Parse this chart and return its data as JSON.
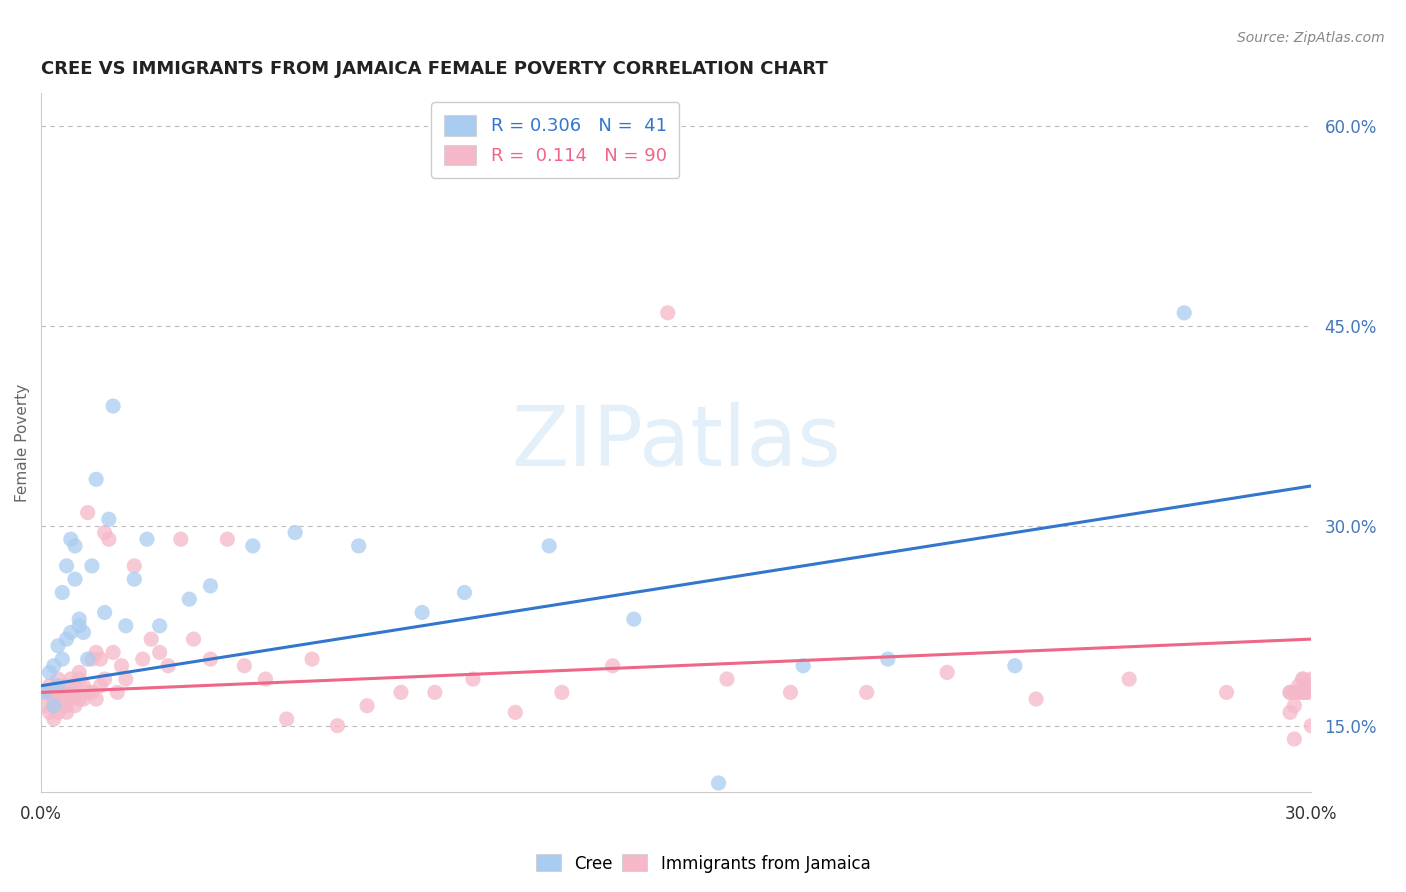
{
  "title": "CREE VS IMMIGRANTS FROM JAMAICA FEMALE POVERTY CORRELATION CHART",
  "source_text": "Source: ZipAtlas.com",
  "ylabel": "Female Poverty",
  "xlim": [
    0.0,
    0.3
  ],
  "ylim": [
    0.1,
    0.625
  ],
  "yticks": [
    0.15,
    0.3,
    0.45,
    0.6
  ],
  "ytick_labels": [
    "15.0%",
    "30.0%",
    "45.0%",
    "60.0%"
  ],
  "legend_R1": "0.306",
  "legend_N1": "41",
  "legend_R2": "0.114",
  "legend_N2": "90",
  "cree_color": "#aaccf0",
  "jamaica_color": "#f5b8c8",
  "line_cree_color": "#3377cc",
  "line_jamaica_color": "#ee6688",
  "background_color": "#ffffff",
  "grid_color": "#bbbbbb",
  "title_color": "#222222",
  "label_color": "#4477bb",
  "cree_x": [
    0.001,
    0.002,
    0.003,
    0.003,
    0.004,
    0.004,
    0.005,
    0.005,
    0.006,
    0.006,
    0.007,
    0.007,
    0.008,
    0.008,
    0.009,
    0.009,
    0.01,
    0.011,
    0.012,
    0.013,
    0.015,
    0.016,
    0.017,
    0.02,
    0.022,
    0.025,
    0.028,
    0.035,
    0.04,
    0.05,
    0.06,
    0.075,
    0.09,
    0.1,
    0.12,
    0.14,
    0.16,
    0.18,
    0.2,
    0.23,
    0.27
  ],
  "cree_y": [
    0.175,
    0.19,
    0.195,
    0.165,
    0.18,
    0.21,
    0.2,
    0.25,
    0.215,
    0.27,
    0.29,
    0.22,
    0.285,
    0.26,
    0.225,
    0.23,
    0.22,
    0.2,
    0.27,
    0.335,
    0.235,
    0.305,
    0.39,
    0.225,
    0.26,
    0.29,
    0.225,
    0.245,
    0.255,
    0.285,
    0.295,
    0.285,
    0.235,
    0.25,
    0.285,
    0.23,
    0.107,
    0.195,
    0.2,
    0.195,
    0.46
  ],
  "jamaica_x": [
    0.001,
    0.001,
    0.002,
    0.002,
    0.002,
    0.003,
    0.003,
    0.003,
    0.004,
    0.004,
    0.004,
    0.005,
    0.005,
    0.005,
    0.006,
    0.006,
    0.006,
    0.006,
    0.007,
    0.007,
    0.007,
    0.008,
    0.008,
    0.008,
    0.009,
    0.009,
    0.009,
    0.01,
    0.01,
    0.011,
    0.011,
    0.012,
    0.012,
    0.013,
    0.013,
    0.014,
    0.014,
    0.015,
    0.015,
    0.016,
    0.017,
    0.018,
    0.019,
    0.02,
    0.022,
    0.024,
    0.026,
    0.028,
    0.03,
    0.033,
    0.036,
    0.04,
    0.044,
    0.048,
    0.053,
    0.058,
    0.064,
    0.07,
    0.077,
    0.085,
    0.093,
    0.102,
    0.112,
    0.123,
    0.135,
    0.148,
    0.162,
    0.177,
    0.195,
    0.214,
    0.235,
    0.257,
    0.28,
    0.295,
    0.3,
    0.298,
    0.295,
    0.298,
    0.296,
    0.299,
    0.297,
    0.299,
    0.298,
    0.296,
    0.3,
    0.297,
    0.299,
    0.295,
    0.296,
    0.298
  ],
  "jamaica_y": [
    0.175,
    0.165,
    0.16,
    0.18,
    0.175,
    0.155,
    0.17,
    0.165,
    0.175,
    0.16,
    0.185,
    0.17,
    0.165,
    0.175,
    0.17,
    0.18,
    0.165,
    0.16,
    0.175,
    0.17,
    0.185,
    0.165,
    0.18,
    0.175,
    0.17,
    0.185,
    0.19,
    0.17,
    0.18,
    0.175,
    0.31,
    0.175,
    0.2,
    0.17,
    0.205,
    0.18,
    0.2,
    0.295,
    0.185,
    0.29,
    0.205,
    0.175,
    0.195,
    0.185,
    0.27,
    0.2,
    0.215,
    0.205,
    0.195,
    0.29,
    0.215,
    0.2,
    0.29,
    0.195,
    0.185,
    0.155,
    0.2,
    0.15,
    0.165,
    0.175,
    0.175,
    0.185,
    0.16,
    0.175,
    0.195,
    0.46,
    0.185,
    0.175,
    0.175,
    0.19,
    0.17,
    0.185,
    0.175,
    0.16,
    0.15,
    0.185,
    0.175,
    0.185,
    0.14,
    0.175,
    0.175,
    0.18,
    0.175,
    0.175,
    0.185,
    0.18,
    0.175,
    0.175,
    0.165,
    0.175
  ],
  "line_cree_x0": 0.0,
  "line_cree_y0": 0.18,
  "line_cree_x1": 0.3,
  "line_cree_y1": 0.33,
  "line_jamaica_x0": 0.0,
  "line_jamaica_y0": 0.175,
  "line_jamaica_x1": 0.3,
  "line_jamaica_y1": 0.215
}
